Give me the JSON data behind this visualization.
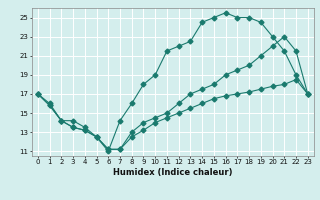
{
  "title": "",
  "xlabel": "Humidex (Indice chaleur)",
  "background_color": "#d4eeed",
  "grid_color": "#b8d8d5",
  "line_color": "#1a7a6e",
  "xlim": [
    -0.5,
    23.5
  ],
  "ylim": [
    10.5,
    26
  ],
  "xticks": [
    0,
    1,
    2,
    3,
    4,
    5,
    6,
    7,
    8,
    9,
    10,
    11,
    12,
    13,
    14,
    15,
    16,
    17,
    18,
    19,
    20,
    21,
    22,
    23
  ],
  "yticks": [
    11,
    13,
    15,
    17,
    19,
    21,
    23,
    25
  ],
  "line1_x": [
    0,
    1,
    2,
    3,
    4,
    5,
    6,
    7,
    8,
    9,
    10,
    11,
    12,
    13,
    14,
    15,
    16,
    17,
    18,
    19,
    20,
    21,
    22,
    23
  ],
  "line1_y": [
    17,
    16,
    14.2,
    14.2,
    13.5,
    12.5,
    11,
    14.2,
    16,
    18,
    19,
    21.5,
    22,
    22.5,
    24.5,
    25,
    25.5,
    25,
    25,
    24.5,
    23,
    21.5,
    19,
    17
  ],
  "line2_x": [
    0,
    1,
    2,
    3,
    4,
    5,
    6,
    7,
    8,
    9,
    10,
    11,
    12,
    13,
    14,
    15,
    16,
    17,
    18,
    19,
    20,
    21,
    22,
    23
  ],
  "line2_y": [
    17,
    15.8,
    14.2,
    13.5,
    13.2,
    12.5,
    11.2,
    11.2,
    13,
    14,
    14.5,
    15,
    16,
    17,
    17.5,
    18,
    19,
    19.5,
    20,
    21,
    22,
    23,
    21.5,
    17
  ],
  "line3_x": [
    0,
    1,
    2,
    3,
    4,
    5,
    6,
    7,
    8,
    9,
    10,
    11,
    12,
    13,
    14,
    15,
    16,
    17,
    18,
    19,
    20,
    21,
    22,
    23
  ],
  "line3_y": [
    17,
    15.8,
    14.2,
    13.5,
    13.2,
    12.5,
    11.2,
    11.2,
    12.5,
    13.2,
    14,
    14.5,
    15,
    15.5,
    16,
    16.5,
    16.8,
    17,
    17.2,
    17.5,
    17.8,
    18,
    18.5,
    17
  ]
}
